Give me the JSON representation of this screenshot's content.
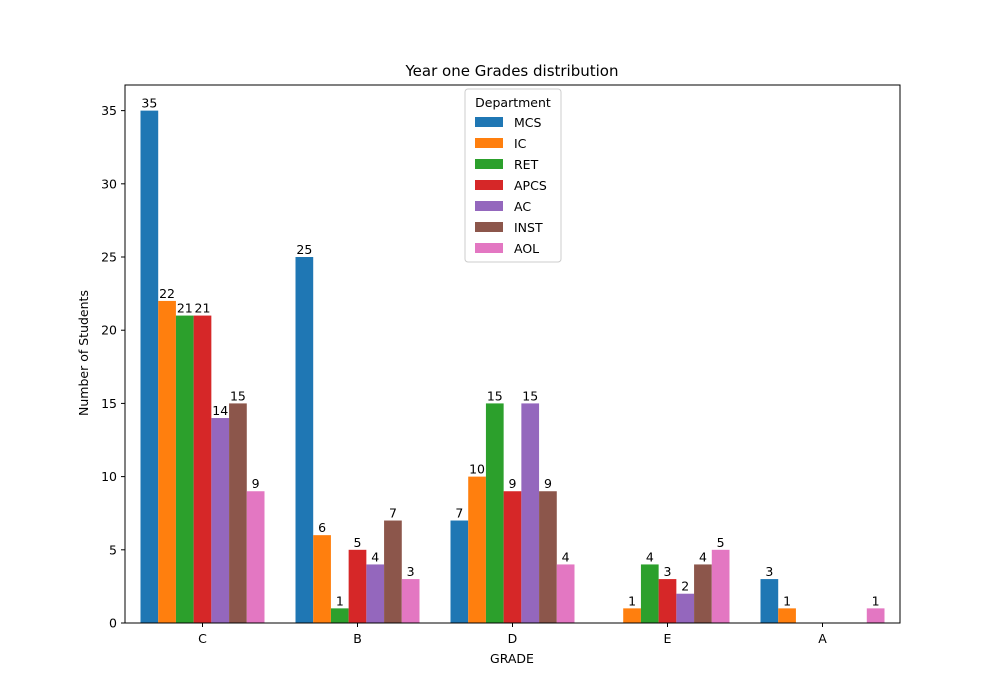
{
  "chart_data": {
    "type": "bar",
    "title": "Year one Grades distribution",
    "xlabel": "GRADE",
    "ylabel": "Number of Students",
    "categories": [
      "C",
      "B",
      "D",
      "E",
      "A"
    ],
    "ylim": [
      0,
      36.75
    ],
    "yticks": [
      0,
      5,
      10,
      15,
      20,
      25,
      30,
      35
    ],
    "grid": false,
    "legend": {
      "title": "Department",
      "placement": "top-center"
    },
    "series": [
      {
        "name": "MCS",
        "color": "#1f77b4",
        "values": [
          35,
          25,
          7,
          0,
          3
        ]
      },
      {
        "name": "IC",
        "color": "#ff7f0e",
        "values": [
          22,
          6,
          10,
          1,
          1
        ]
      },
      {
        "name": "RET",
        "color": "#2ca02c",
        "values": [
          21,
          1,
          15,
          4,
          0
        ]
      },
      {
        "name": "APCS",
        "color": "#d62728",
        "values": [
          21,
          5,
          9,
          3,
          0
        ]
      },
      {
        "name": "AC",
        "color": "#9467bd",
        "values": [
          14,
          4,
          15,
          2,
          0
        ]
      },
      {
        "name": "INST",
        "color": "#8c564b",
        "values": [
          15,
          7,
          9,
          4,
          0
        ]
      },
      {
        "name": "AOL",
        "color": "#e377c2",
        "values": [
          9,
          3,
          4,
          5,
          1
        ]
      }
    ],
    "data_labels": [
      [
        "35",
        "25",
        "7",
        "",
        "3"
      ],
      [
        "22",
        "6",
        "10",
        "1",
        "1"
      ],
      [
        "21",
        "1",
        "15",
        "4",
        ""
      ],
      [
        "21",
        "5",
        "9",
        "3",
        ""
      ],
      [
        "14",
        "4",
        "15",
        "2",
        ""
      ],
      [
        "15",
        "7",
        "9",
        "4",
        ""
      ],
      [
        "9",
        "3",
        "4",
        "5",
        "1"
      ]
    ]
  }
}
